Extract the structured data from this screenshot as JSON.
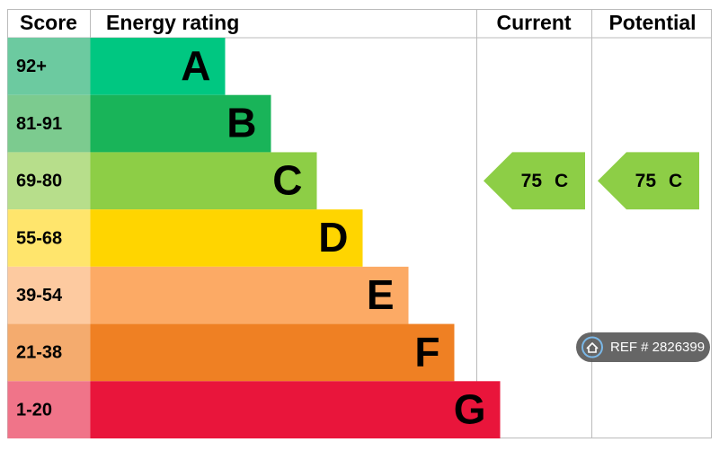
{
  "header": {
    "score": "Score",
    "rating": "Energy rating",
    "current": "Current",
    "potential": "Potential"
  },
  "bands": [
    {
      "score": "92+",
      "letter": "A",
      "color": "#00c781",
      "light": "#6ccaa0"
    },
    {
      "score": "81-91",
      "letter": "B",
      "color": "#19b459",
      "light": "#7ccb8f"
    },
    {
      "score": "69-80",
      "letter": "C",
      "color": "#8dce46",
      "light": "#b7de8b"
    },
    {
      "score": "55-68",
      "letter": "D",
      "color": "#ffd500",
      "light": "#ffe56c"
    },
    {
      "score": "39-54",
      "letter": "E",
      "color": "#fcaa65",
      "light": "#fdcaa0"
    },
    {
      "score": "21-38",
      "letter": "F",
      "color": "#ef8023",
      "light": "#f4ab6e"
    },
    {
      "score": "1-20",
      "letter": "G",
      "color": "#e9153b",
      "light": "#f07489"
    }
  ],
  "current": {
    "value": "75",
    "letter": "C"
  },
  "potential": {
    "value": "75",
    "letter": "C"
  },
  "ref": "REF # 2826399"
}
